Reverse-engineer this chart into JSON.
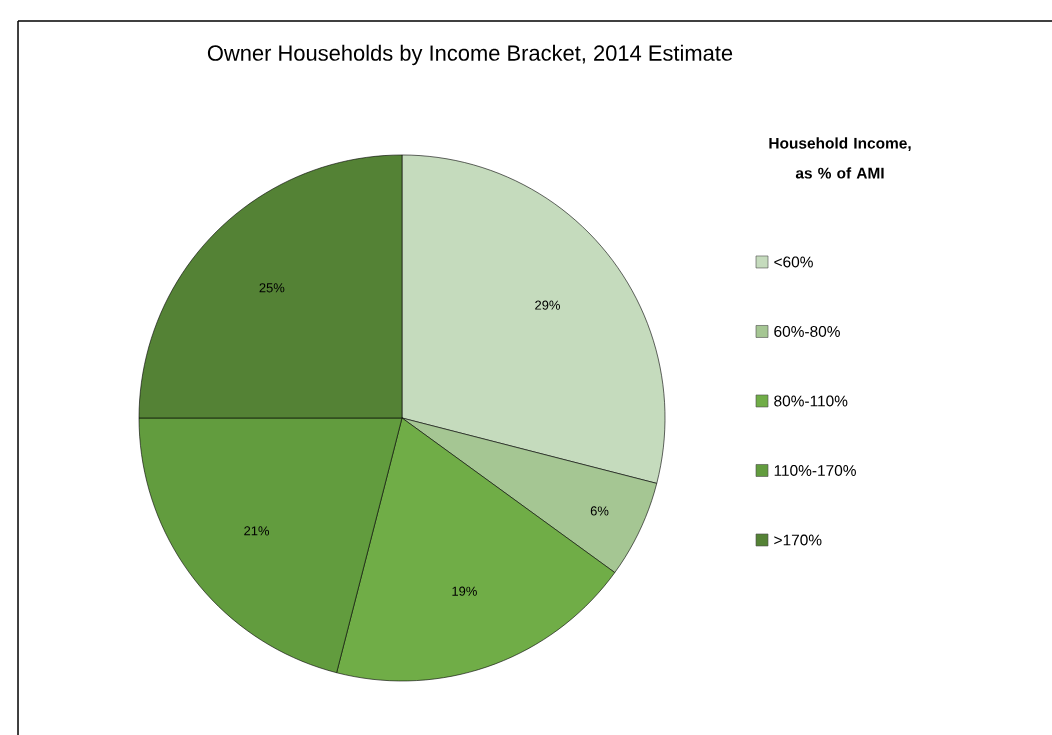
{
  "chart_data": {
    "type": "pie",
    "title": "Owner Households by Income Bracket, 2014 Estimate",
    "legend_title": "Household Income, as % of AMI",
    "categories": [
      "<60%",
      "60%-80%",
      "80%-110%",
      "110%-170%",
      ">170%"
    ],
    "values": [
      29,
      6,
      19,
      21,
      25
    ],
    "colors": [
      "#c5dbbd",
      "#a5c693",
      "#70ad47",
      "#629c3e",
      "#548235"
    ],
    "value_labels": [
      "29%",
      "6%",
      "19%",
      "21%",
      "25%"
    ],
    "legend": "right"
  }
}
